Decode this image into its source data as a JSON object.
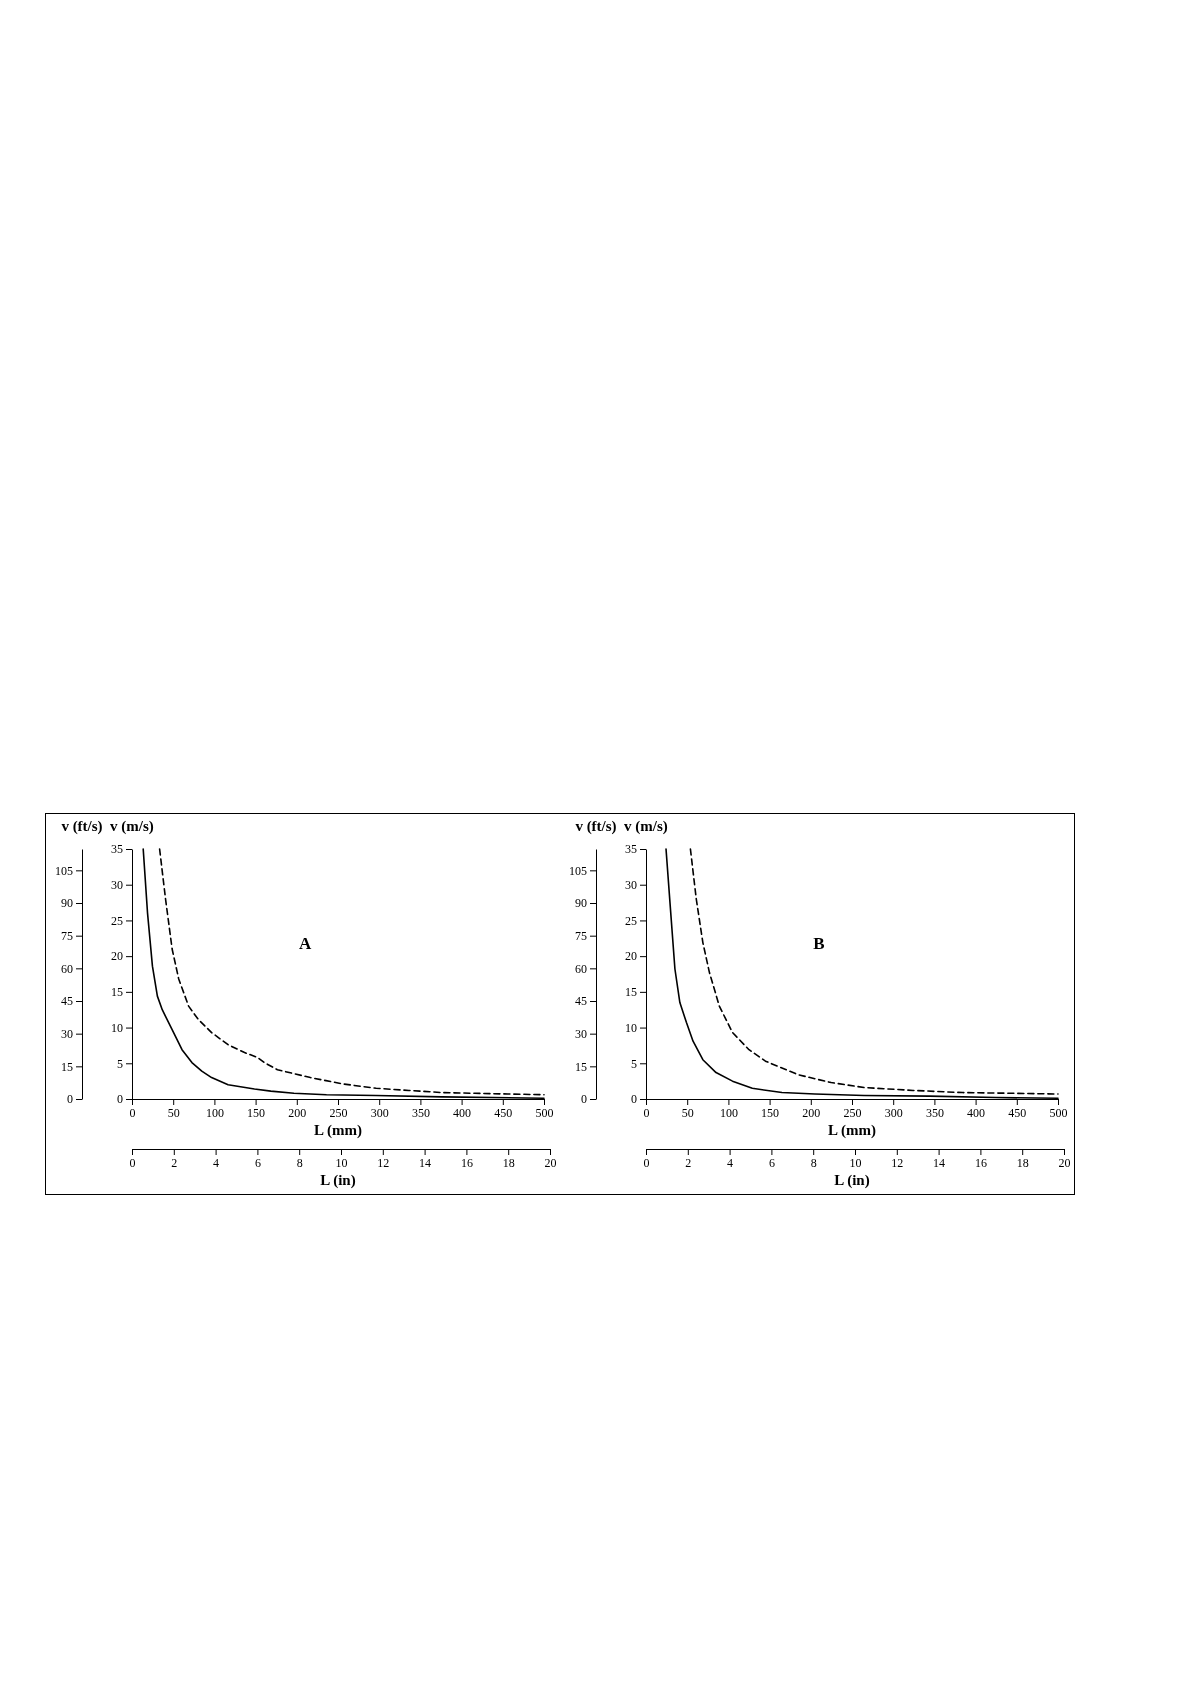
{
  "chart_data": [
    {
      "type": "line",
      "xlabel": "L (mm)",
      "ylabel": "v (m/s)",
      "y2label": "v (ft/s)",
      "x2label": "L (in)",
      "annotations": [
        "A"
      ],
      "xlim": [
        0,
        500
      ],
      "xticks": [
        0,
        50,
        100,
        150,
        200,
        250,
        300,
        350,
        400,
        450,
        500
      ],
      "ylim": [
        0,
        35
      ],
      "yticks": [
        0,
        5,
        10,
        15,
        20,
        25,
        30,
        35
      ],
      "y2lim": [
        0,
        114.8
      ],
      "y2ticks": [
        0,
        15,
        30,
        45,
        60,
        75,
        90,
        105
      ],
      "x2lim": [
        0,
        20
      ],
      "x2ticks": [
        0,
        2,
        4,
        6,
        8,
        10,
        12,
        14,
        16,
        18,
        20
      ],
      "series": [
        {
          "color": "#000000",
          "line_style": "solid",
          "x": [
            13.6,
            18.8,
            24.8,
            30.8,
            36.7,
            48.7,
            60.7,
            72.7,
            84.7,
            96.6,
            116.6,
            148.6,
            168.5,
            196.5,
            236,
            296,
            376,
            500
          ],
          "values": [
            35,
            26.1,
            18.6,
            14.4,
            12.5,
            9.7,
            6.9,
            5.1,
            3.9,
            3.0,
            2.0,
            1.4,
            1.1,
            0.8,
            0.6,
            0.5,
            0.3,
            0.1
          ]
        },
        {
          "color": "#000000",
          "line_style": "dashed",
          "x": [
            33.5,
            40.7,
            48.7,
            56.7,
            68.7,
            80.7,
            96.6,
            116.6,
            136.6,
            152.6,
            160.5,
            176.5,
            216.5,
            256.4,
            296.3,
            336,
            376,
            416,
            456,
            500
          ],
          "values": [
            35,
            28.0,
            21.0,
            16.8,
            13.0,
            11.1,
            9.3,
            7.6,
            6.5,
            5.8,
            5.1,
            4.1,
            3.0,
            2.1,
            1.5,
            1.2,
            0.9,
            0.8,
            0.7,
            0.6
          ]
        }
      ]
    },
    {
      "type": "line",
      "xlabel": "L (mm)",
      "ylabel": "v (m/s)",
      "y2label": "v (ft/s)",
      "x2label": "L (in)",
      "annotations": [
        "B"
      ],
      "xlim": [
        0,
        500
      ],
      "xticks": [
        0,
        50,
        100,
        150,
        200,
        250,
        300,
        350,
        400,
        450,
        500
      ],
      "ylim": [
        0,
        35
      ],
      "yticks": [
        0,
        5,
        10,
        15,
        20,
        25,
        30,
        35
      ],
      "y2lim": [
        0,
        114.8
      ],
      "y2ticks": [
        0,
        15,
        30,
        45,
        60,
        75,
        90,
        105
      ],
      "x2lim": [
        0,
        20
      ],
      "x2ticks": [
        0,
        2,
        4,
        6,
        8,
        10,
        12,
        14,
        16,
        18,
        20
      ],
      "series": [
        {
          "color": "#000000",
          "line_style": "solid",
          "x": [
            24.3,
            29.1,
            35.1,
            41.1,
            49.1,
            57.1,
            69,
            85,
            105,
            129,
            165,
            205,
            264.6,
            344,
            424,
            500
          ],
          "values": [
            35,
            27.5,
            18.2,
            13.5,
            10.7,
            8.1,
            5.5,
            3.7,
            2.5,
            1.5,
            0.9,
            0.7,
            0.5,
            0.4,
            0.2,
            0.1
          ]
        },
        {
          "color": "#000000",
          "line_style": "dashed",
          "x": [
            53.9,
            61,
            69,
            77,
            89,
            105,
            125,
            145,
            184.7,
            224.7,
            264.6,
            324,
            384,
            444,
            500
          ],
          "values": [
            35,
            28,
            21.9,
            17.7,
            13.0,
            9.3,
            6.9,
            5.3,
            3.4,
            2.3,
            1.6,
            1.2,
            0.9,
            0.8,
            0.7
          ]
        }
      ]
    }
  ]
}
